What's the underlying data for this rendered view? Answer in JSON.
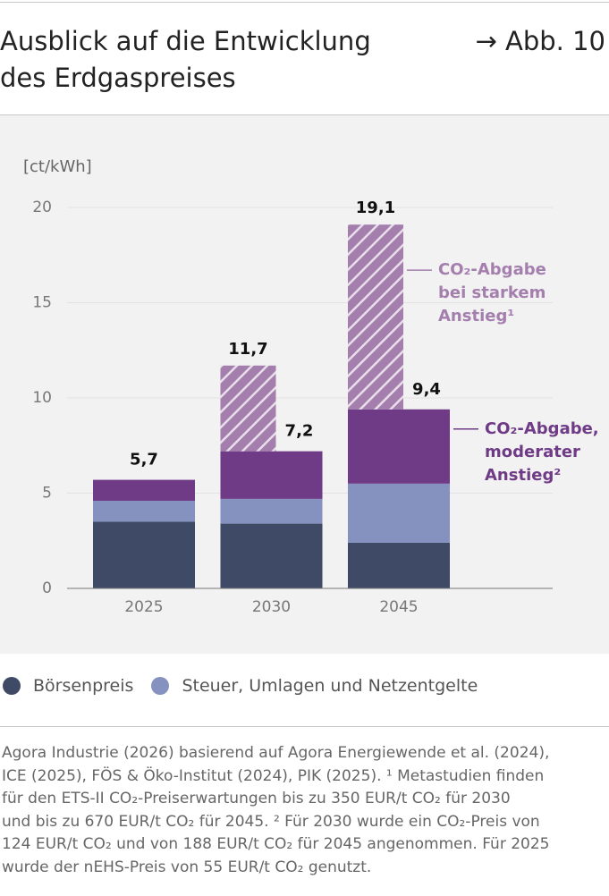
{
  "header": {
    "title_lines": [
      "Ausblick auf die Entwicklung",
      "des Erdgaspreises"
    ],
    "figure_ref": "→ Abb. 10"
  },
  "chart_data": {
    "type": "stacked-bar",
    "y_label": "[ct/kWh]",
    "categories": [
      "2025",
      "2030",
      "2045"
    ],
    "ylim": [
      0,
      20
    ],
    "yticks": [
      0,
      5,
      10,
      15,
      20
    ],
    "grid": true,
    "series": [
      {
        "name": "Börsenpreis",
        "color": "#3f4b66",
        "values": [
          3.5,
          3.4,
          2.4
        ],
        "in_legend": true
      },
      {
        "name": "Steuer, Umlagen und Netzentgelte",
        "color": "#8591bf",
        "values": [
          1.1,
          1.3,
          3.1
        ],
        "in_legend": true
      },
      {
        "name_lines": [
          "CO₂-Abgabe,",
          "moderater",
          "Anstieg²"
        ],
        "color": "#6f3b86",
        "values": [
          1.1,
          2.5,
          3.9
        ],
        "in_legend": false
      },
      {
        "name_lines": [
          "CO₂-Abgabe",
          "bei starkem",
          "Anstieg¹"
        ],
        "color": "#a47fae",
        "hatched": true,
        "values": [
          null,
          4.5,
          9.7
        ],
        "in_legend": false
      }
    ],
    "totals": [
      {
        "value": 5.7,
        "label": "5,7"
      },
      {
        "value": 7.2,
        "label": "7,2"
      },
      {
        "value": 9.4,
        "label": "9,4"
      }
    ],
    "high_totals": [
      null,
      {
        "value": 11.7,
        "label": "11,7"
      },
      {
        "value": 19.1,
        "label": "19,1"
      }
    ]
  },
  "footer": {
    "lines": [
      "Agora Industrie (2026) basierend auf Agora Energiewende et al. (2024),",
      "ICE (2025), FÖS & Öko-Institut (2024), PIK (2025). ¹ Metastudien finden",
      "für den ETS-II CO₂-Preiserwartungen bis zu 350 EUR/t CO₂ für 2030",
      "und bis zu 670 EUR/t CO₂ für 2045. ² Für 2030 wurde ein CO₂-Preis von",
      "124 EUR/t CO₂ und von 188 EUR/t CO₂ für 2045 angenommen. Für 2025",
      "wurde der nEHS-Preis von 55 EUR/t CO₂ genutzt."
    ]
  }
}
